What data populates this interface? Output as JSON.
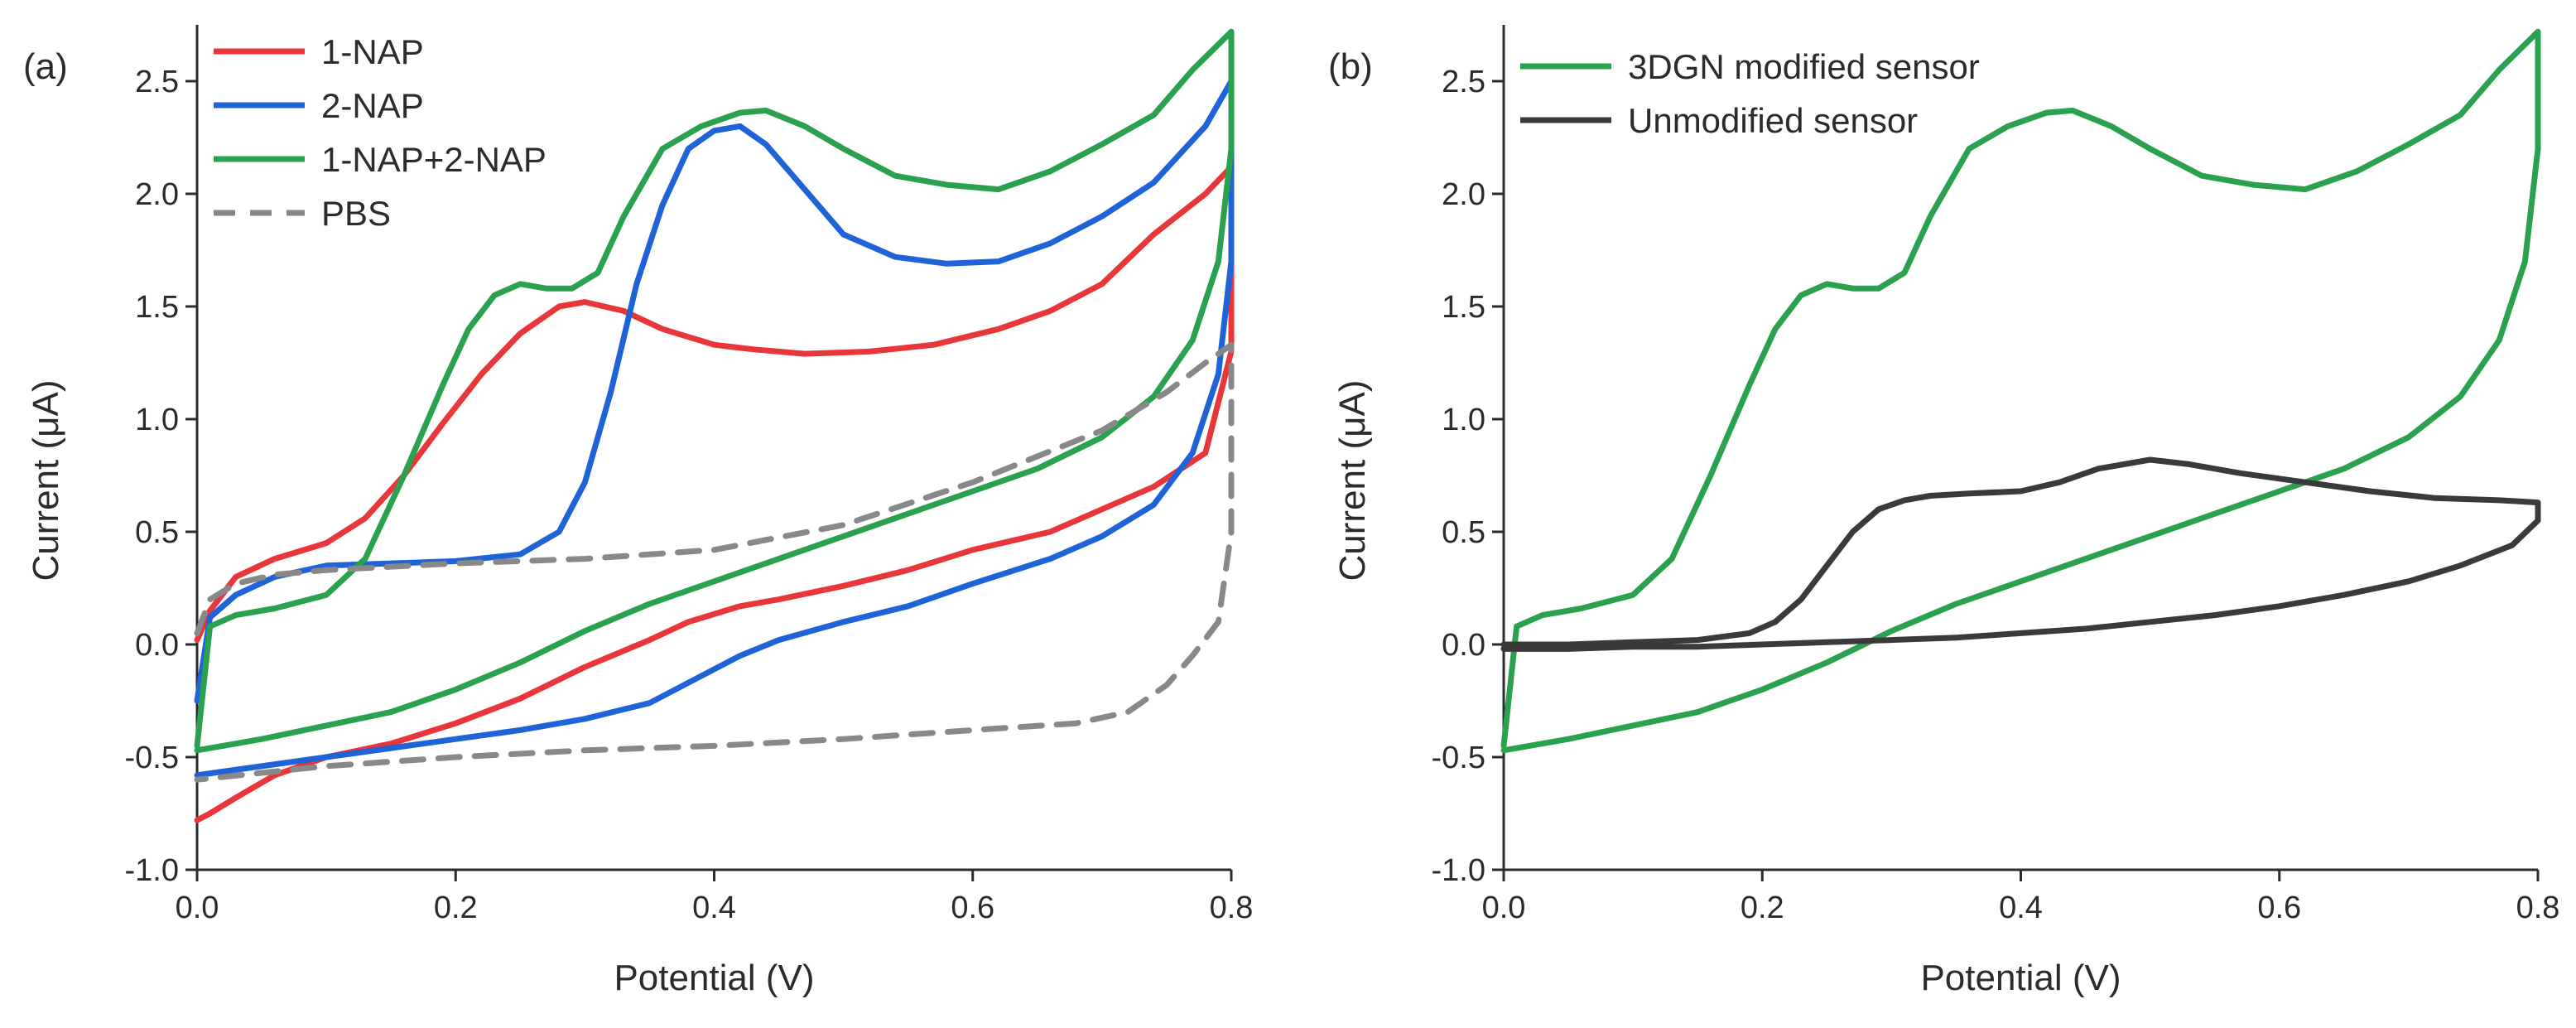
{
  "chart_data": [
    {
      "panel_label": "(a)",
      "type": "line",
      "title": "",
      "xlabel": "Potential (V)",
      "ylabel": "Current (μA)",
      "xlim": [
        0.0,
        0.8
      ],
      "ylim": [
        -1.0,
        2.75
      ],
      "xticks": [
        0.0,
        0.2,
        0.4,
        0.6,
        0.8
      ],
      "xtick_labels": [
        "0.0",
        "0.2",
        "0.4",
        "0.6",
        "0.8"
      ],
      "yticks": [
        -1.0,
        -0.5,
        0.0,
        0.5,
        1.0,
        1.5,
        2.0,
        2.5
      ],
      "ytick_labels": [
        "-1.0",
        "-0.5",
        "0.0",
        "0.5",
        "1.0",
        "1.5",
        "2.0",
        "2.5"
      ],
      "grid": false,
      "legend_position": "top-left",
      "series": [
        {
          "name": "1-NAP",
          "color": "#e8363a",
          "dash": "solid",
          "x": [
            0.0,
            0.01,
            0.03,
            0.06,
            0.1,
            0.13,
            0.16,
            0.19,
            0.22,
            0.25,
            0.28,
            0.3,
            0.33,
            0.36,
            0.4,
            0.43,
            0.47,
            0.52,
            0.57,
            0.62,
            0.66,
            0.7,
            0.74,
            0.78,
            0.8,
            0.8,
            0.8,
            0.78,
            0.74,
            0.7,
            0.66,
            0.6,
            0.55,
            0.5,
            0.45,
            0.42,
            0.38,
            0.35,
            0.3,
            0.25,
            0.2,
            0.15,
            0.1,
            0.06,
            0.03,
            0.01,
            0.0
          ],
          "y": [
            0.02,
            0.15,
            0.3,
            0.38,
            0.45,
            0.56,
            0.75,
            0.98,
            1.2,
            1.38,
            1.5,
            1.52,
            1.48,
            1.4,
            1.33,
            1.31,
            1.29,
            1.3,
            1.33,
            1.4,
            1.48,
            1.6,
            1.82,
            2.0,
            2.12,
            1.6,
            1.3,
            0.85,
            0.7,
            0.6,
            0.5,
            0.42,
            0.33,
            0.26,
            0.2,
            0.17,
            0.1,
            0.02,
            -0.1,
            -0.24,
            -0.35,
            -0.44,
            -0.5,
            -0.58,
            -0.68,
            -0.75,
            -0.78
          ]
        },
        {
          "name": "2-NAP",
          "color": "#1f63d8",
          "dash": "solid",
          "x": [
            0.0,
            0.01,
            0.03,
            0.06,
            0.1,
            0.15,
            0.2,
            0.25,
            0.28,
            0.3,
            0.32,
            0.34,
            0.36,
            0.38,
            0.4,
            0.42,
            0.44,
            0.47,
            0.5,
            0.54,
            0.58,
            0.62,
            0.66,
            0.7,
            0.74,
            0.78,
            0.8,
            0.8,
            0.79,
            0.77,
            0.74,
            0.7,
            0.66,
            0.6,
            0.55,
            0.5,
            0.45,
            0.42,
            0.38,
            0.35,
            0.3,
            0.25,
            0.2,
            0.15,
            0.1,
            0.05,
            0.0
          ],
          "y": [
            -0.25,
            0.12,
            0.22,
            0.3,
            0.35,
            0.36,
            0.37,
            0.4,
            0.5,
            0.72,
            1.12,
            1.6,
            1.95,
            2.2,
            2.28,
            2.3,
            2.22,
            2.02,
            1.82,
            1.72,
            1.69,
            1.7,
            1.78,
            1.9,
            2.05,
            2.3,
            2.5,
            1.7,
            1.2,
            0.85,
            0.62,
            0.48,
            0.38,
            0.27,
            0.17,
            0.1,
            0.02,
            -0.05,
            -0.17,
            -0.26,
            -0.33,
            -0.38,
            -0.42,
            -0.46,
            -0.5,
            -0.54,
            -0.58
          ]
        },
        {
          "name": "1-NAP+2-NAP",
          "color": "#2aa14e",
          "dash": "solid",
          "x": [
            0.0,
            0.01,
            0.03,
            0.06,
            0.1,
            0.13,
            0.16,
            0.19,
            0.21,
            0.23,
            0.25,
            0.27,
            0.29,
            0.31,
            0.33,
            0.36,
            0.39,
            0.42,
            0.44,
            0.47,
            0.5,
            0.54,
            0.58,
            0.62,
            0.66,
            0.7,
            0.74,
            0.77,
            0.8,
            0.8,
            0.79,
            0.77,
            0.74,
            0.7,
            0.65,
            0.6,
            0.55,
            0.5,
            0.45,
            0.4,
            0.35,
            0.3,
            0.25,
            0.2,
            0.15,
            0.1,
            0.05,
            0.0
          ],
          "y": [
            -0.45,
            0.08,
            0.13,
            0.16,
            0.22,
            0.38,
            0.75,
            1.15,
            1.4,
            1.55,
            1.6,
            1.58,
            1.58,
            1.65,
            1.9,
            2.2,
            2.3,
            2.36,
            2.37,
            2.3,
            2.2,
            2.08,
            2.04,
            2.02,
            2.1,
            2.22,
            2.35,
            2.55,
            2.72,
            2.2,
            1.7,
            1.35,
            1.1,
            0.92,
            0.78,
            0.68,
            0.58,
            0.48,
            0.38,
            0.28,
            0.18,
            0.06,
            -0.08,
            -0.2,
            -0.3,
            -0.36,
            -0.42,
            -0.47
          ]
        },
        {
          "name": "PBS",
          "color": "#888888",
          "dash": "dashed",
          "x": [
            0.0,
            0.01,
            0.03,
            0.06,
            0.1,
            0.2,
            0.3,
            0.4,
            0.5,
            0.6,
            0.7,
            0.75,
            0.78,
            0.8,
            0.8,
            0.8,
            0.79,
            0.77,
            0.75,
            0.72,
            0.68,
            0.6,
            0.5,
            0.4,
            0.3,
            0.2,
            0.1,
            0.05,
            0.0
          ],
          "y": [
            0.05,
            0.2,
            0.27,
            0.31,
            0.33,
            0.36,
            0.38,
            0.42,
            0.53,
            0.72,
            0.95,
            1.12,
            1.25,
            1.33,
            1.0,
            0.5,
            0.1,
            -0.05,
            -0.18,
            -0.3,
            -0.35,
            -0.38,
            -0.42,
            -0.45,
            -0.47,
            -0.5,
            -0.54,
            -0.57,
            -0.6
          ]
        }
      ]
    },
    {
      "panel_label": "(b)",
      "type": "line",
      "title": "",
      "xlabel": "Potential (V)",
      "ylabel": "Current (μA)",
      "xlim": [
        0.0,
        0.8
      ],
      "ylim": [
        -1.0,
        2.75
      ],
      "xticks": [
        0.0,
        0.2,
        0.4,
        0.6,
        0.8
      ],
      "xtick_labels": [
        "0.0",
        "0.2",
        "0.4",
        "0.6",
        "0.8"
      ],
      "yticks": [
        -1.0,
        -0.5,
        0.0,
        0.5,
        1.0,
        1.5,
        2.0,
        2.5
      ],
      "ytick_labels": [
        "-1.0",
        "-0.5",
        "0.0",
        "0.5",
        "1.0",
        "1.5",
        "2.0",
        "2.5"
      ],
      "grid": false,
      "legend_position": "top-left",
      "series": [
        {
          "name": "3DGN modified sensor",
          "color": "#2aa14e",
          "dash": "solid",
          "x": [
            0.0,
            0.01,
            0.03,
            0.06,
            0.1,
            0.13,
            0.16,
            0.19,
            0.21,
            0.23,
            0.25,
            0.27,
            0.29,
            0.31,
            0.33,
            0.36,
            0.39,
            0.42,
            0.44,
            0.47,
            0.5,
            0.54,
            0.58,
            0.62,
            0.66,
            0.7,
            0.74,
            0.77,
            0.8,
            0.8,
            0.79,
            0.77,
            0.74,
            0.7,
            0.65,
            0.6,
            0.55,
            0.5,
            0.45,
            0.4,
            0.35,
            0.3,
            0.25,
            0.2,
            0.15,
            0.1,
            0.05,
            0.0
          ],
          "y": [
            -0.45,
            0.08,
            0.13,
            0.16,
            0.22,
            0.38,
            0.75,
            1.15,
            1.4,
            1.55,
            1.6,
            1.58,
            1.58,
            1.65,
            1.9,
            2.2,
            2.3,
            2.36,
            2.37,
            2.3,
            2.2,
            2.08,
            2.04,
            2.02,
            2.1,
            2.22,
            2.35,
            2.55,
            2.72,
            2.2,
            1.7,
            1.35,
            1.1,
            0.92,
            0.78,
            0.68,
            0.58,
            0.48,
            0.38,
            0.28,
            0.18,
            0.06,
            -0.08,
            -0.2,
            -0.3,
            -0.36,
            -0.42,
            -0.47
          ]
        },
        {
          "name": "Unmodified sensor",
          "color": "#3a3a3a",
          "dash": "solid",
          "x": [
            0.0,
            0.05,
            0.1,
            0.15,
            0.19,
            0.21,
            0.23,
            0.25,
            0.27,
            0.29,
            0.31,
            0.33,
            0.36,
            0.4,
            0.43,
            0.46,
            0.5,
            0.53,
            0.57,
            0.62,
            0.67,
            0.72,
            0.77,
            0.8,
            0.8,
            0.78,
            0.74,
            0.7,
            0.65,
            0.6,
            0.55,
            0.5,
            0.45,
            0.4,
            0.35,
            0.3,
            0.25,
            0.2,
            0.15,
            0.1,
            0.05,
            0.0
          ],
          "y": [
            0.0,
            0.0,
            0.01,
            0.02,
            0.05,
            0.1,
            0.2,
            0.35,
            0.5,
            0.6,
            0.64,
            0.66,
            0.67,
            0.68,
            0.72,
            0.78,
            0.82,
            0.8,
            0.76,
            0.72,
            0.68,
            0.65,
            0.64,
            0.63,
            0.55,
            0.44,
            0.35,
            0.28,
            0.22,
            0.17,
            0.13,
            0.1,
            0.07,
            0.05,
            0.03,
            0.02,
            0.01,
            0.0,
            -0.01,
            -0.01,
            -0.02,
            -0.02
          ]
        }
      ]
    }
  ]
}
